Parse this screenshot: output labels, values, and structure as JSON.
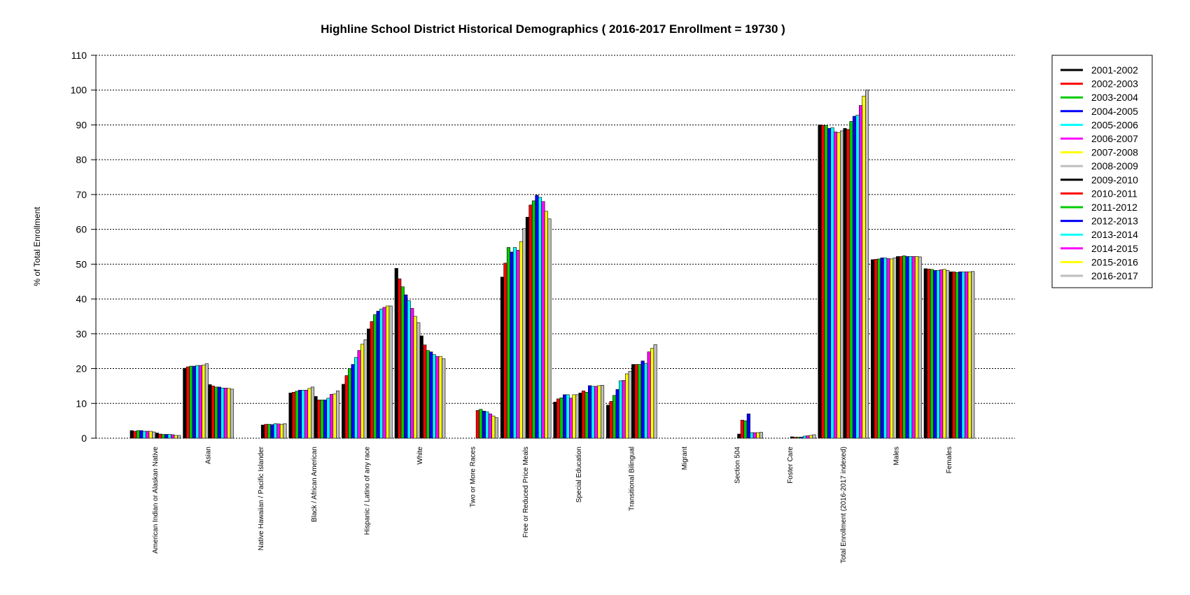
{
  "chart_data": {
    "type": "bar",
    "title": "Highline School District Historical Demographics  ( 2016-2017 Enrollment =  19730 )",
    "ylabel": "% of Total Enrollment",
    "xlabel": "",
    "ylim": [
      0,
      110
    ],
    "yticks": [
      0,
      10,
      20,
      30,
      40,
      50,
      60,
      70,
      80,
      90,
      100,
      110
    ],
    "grid": "horizontal dotted",
    "legend_position": "right",
    "categories": [
      "American Indian or Alaskan Native",
      "Asian",
      "Native Hawaiian / Pacific Islander",
      "Black / African American",
      "Hispanic / Latino of any race",
      "White",
      "Two or More Races",
      "Free or Reduced Price Meals",
      "Special Education",
      "Transitional Bilingual",
      "Migrant",
      "Section 504",
      "Foster Care",
      "Total Enrollment (2016-2017 indexed)",
      "Males",
      "Females"
    ],
    "series": [
      {
        "name": "2001-2002",
        "color": "#000000",
        "values": [
          2.2,
          20.1,
          0,
          13.0,
          15.5,
          48.8,
          0,
          46.3,
          10.4,
          9.5,
          0,
          0,
          0,
          90.0,
          51.3,
          48.7
        ]
      },
      {
        "name": "2002-2003",
        "color": "#ff0000",
        "values": [
          2.0,
          20.5,
          0,
          13.2,
          18.0,
          45.8,
          0,
          50.3,
          11.3,
          10.6,
          0,
          0,
          0,
          89.9,
          51.4,
          48.6
        ]
      },
      {
        "name": "2003-2004",
        "color": "#00cc00",
        "values": [
          2.2,
          20.7,
          0,
          13.5,
          20.0,
          43.5,
          0,
          54.8,
          11.6,
          12.3,
          0,
          0,
          0,
          89.8,
          51.5,
          48.5
        ]
      },
      {
        "name": "2004-2005",
        "color": "#0000ff",
        "values": [
          2.2,
          20.7,
          0,
          13.8,
          21.2,
          41.2,
          0,
          53.5,
          12.5,
          14.0,
          0,
          0,
          0,
          89.0,
          51.8,
          48.2
        ]
      },
      {
        "name": "2005-2006",
        "color": "#00ffff",
        "values": [
          2.0,
          20.9,
          0,
          13.8,
          23.2,
          39.5,
          0,
          54.8,
          12.5,
          16.5,
          0,
          0,
          0,
          89.2,
          51.8,
          48.2
        ]
      },
      {
        "name": "2006-2007",
        "color": "#ff00ff",
        "values": [
          2.0,
          20.9,
          0,
          13.8,
          25.2,
          37.3,
          0,
          54.0,
          11.5,
          16.6,
          0,
          0,
          0,
          88.0,
          51.6,
          48.4
        ]
      },
      {
        "name": "2007-2008",
        "color": "#ffff00",
        "values": [
          2.0,
          21.0,
          0,
          14.3,
          27.0,
          35.0,
          0,
          56.5,
          12.5,
          18.5,
          0,
          0,
          0,
          87.8,
          51.5,
          48.5
        ]
      },
      {
        "name": "2008-2009",
        "color": "#bebebe",
        "values": [
          1.8,
          21.4,
          0,
          14.7,
          28.3,
          33.2,
          0,
          60.2,
          12.5,
          19.2,
          0,
          0,
          0,
          88.3,
          51.8,
          48.2
        ]
      },
      {
        "name": "2009-2010",
        "color": "#000000",
        "values": [
          1.5,
          15.4,
          3.8,
          12.0,
          31.4,
          29.4,
          0,
          63.5,
          13.0,
          21.2,
          0,
          1.2,
          0.4,
          89.0,
          52.2,
          47.8
        ]
      },
      {
        "name": "2010-2011",
        "color": "#ff0000",
        "values": [
          1.2,
          15.0,
          4.0,
          11.0,
          33.5,
          26.8,
          8.0,
          67.0,
          13.6,
          21.2,
          0,
          5.2,
          0.3,
          88.7,
          52.2,
          47.8
        ]
      },
      {
        "name": "2011-2012",
        "color": "#00cc00",
        "values": [
          1.1,
          14.7,
          4.0,
          11.0,
          35.5,
          25.2,
          8.3,
          68.2,
          13.2,
          21.2,
          0,
          5.0,
          0.3,
          91.0,
          52.4,
          47.6
        ]
      },
      {
        "name": "2012-2013",
        "color": "#0000ff",
        "values": [
          1.1,
          14.7,
          3.9,
          11.0,
          36.5,
          24.8,
          7.8,
          69.8,
          15.1,
          22.2,
          0,
          7.0,
          0.3,
          92.5,
          52.2,
          47.8
        ]
      },
      {
        "name": "2013-2014",
        "color": "#00ffff",
        "values": [
          1.1,
          14.4,
          4.2,
          11.5,
          37.1,
          24.0,
          7.6,
          69.2,
          14.9,
          21.5,
          0,
          1.6,
          0.6,
          92.8,
          52.2,
          47.8
        ]
      },
      {
        "name": "2014-2015",
        "color": "#ff00ff",
        "values": [
          1.0,
          14.4,
          4.1,
          12.6,
          37.6,
          23.5,
          7.0,
          68.0,
          14.9,
          24.8,
          0,
          1.6,
          0.7,
          95.6,
          52.2,
          47.8
        ]
      },
      {
        "name": "2015-2016",
        "color": "#ffff00",
        "values": [
          0.8,
          14.3,
          4.0,
          12.7,
          38.0,
          23.5,
          6.4,
          65.2,
          15.1,
          25.8,
          0,
          1.6,
          0.8,
          98.3,
          52.2,
          47.8
        ]
      },
      {
        "name": "2016-2017",
        "color": "#bebebe",
        "values": [
          0.8,
          14.1,
          4.2,
          13.6,
          38.0,
          22.8,
          5.9,
          63.0,
          15.2,
          26.9,
          0,
          1.7,
          1.0,
          100.0,
          52.1,
          47.9
        ]
      }
    ]
  }
}
